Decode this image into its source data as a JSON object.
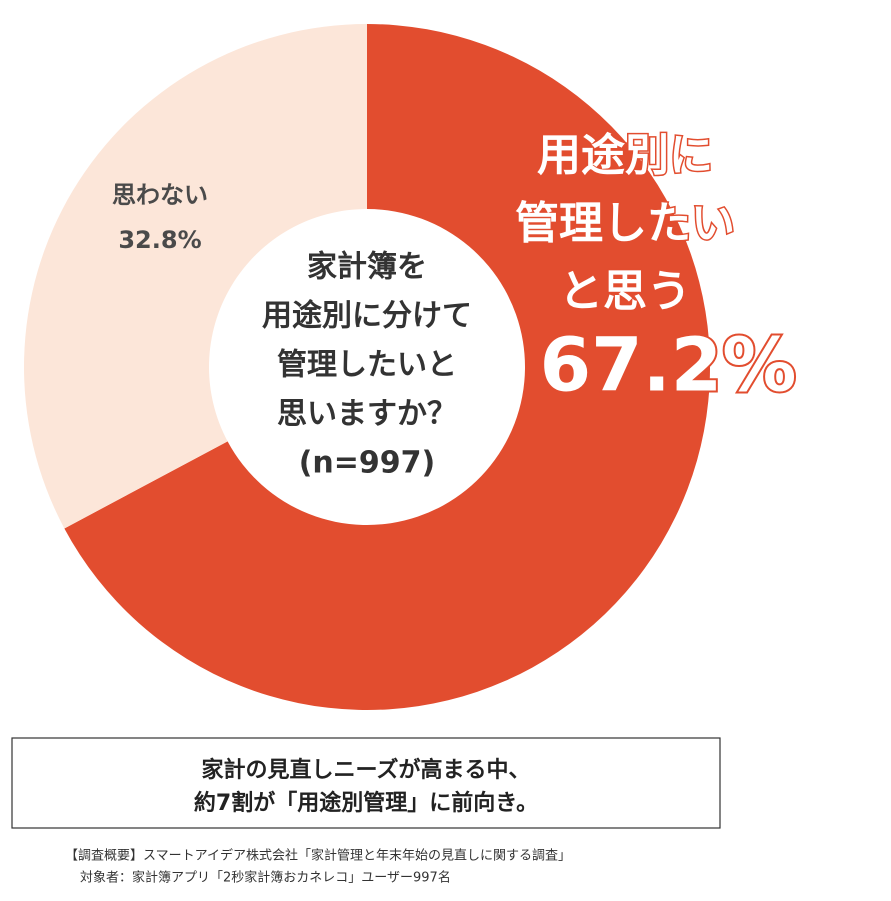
{
  "chart_data": {
    "type": "donut",
    "categories": [
      [
        "用途別に",
        "管理したい",
        "と思う"
      ],
      [
        "思わない"
      ]
    ],
    "values": [
      67.2,
      32.8
    ],
    "value_labels": [
      "67.2%",
      "32.8%"
    ],
    "colors": [
      "#e24d2f",
      "#fce6d9"
    ],
    "center_label": [
      "家計簿を",
      "用途別に分けて",
      "管理したいと",
      "思いますか？",
      "(n=997)"
    ]
  },
  "callout": [
    "家計の見直しニーズが高まる中、",
    "約7割が「用途別管理」に前向き。"
  ],
  "footnote": [
    "【調査概要】スマートアイデア株式会社「家計管理と年末年始の見直しに関する調査」",
    "対象者：家計簿アプリ「2秒家計簿おカネレコ」ユーザー997名"
  ]
}
